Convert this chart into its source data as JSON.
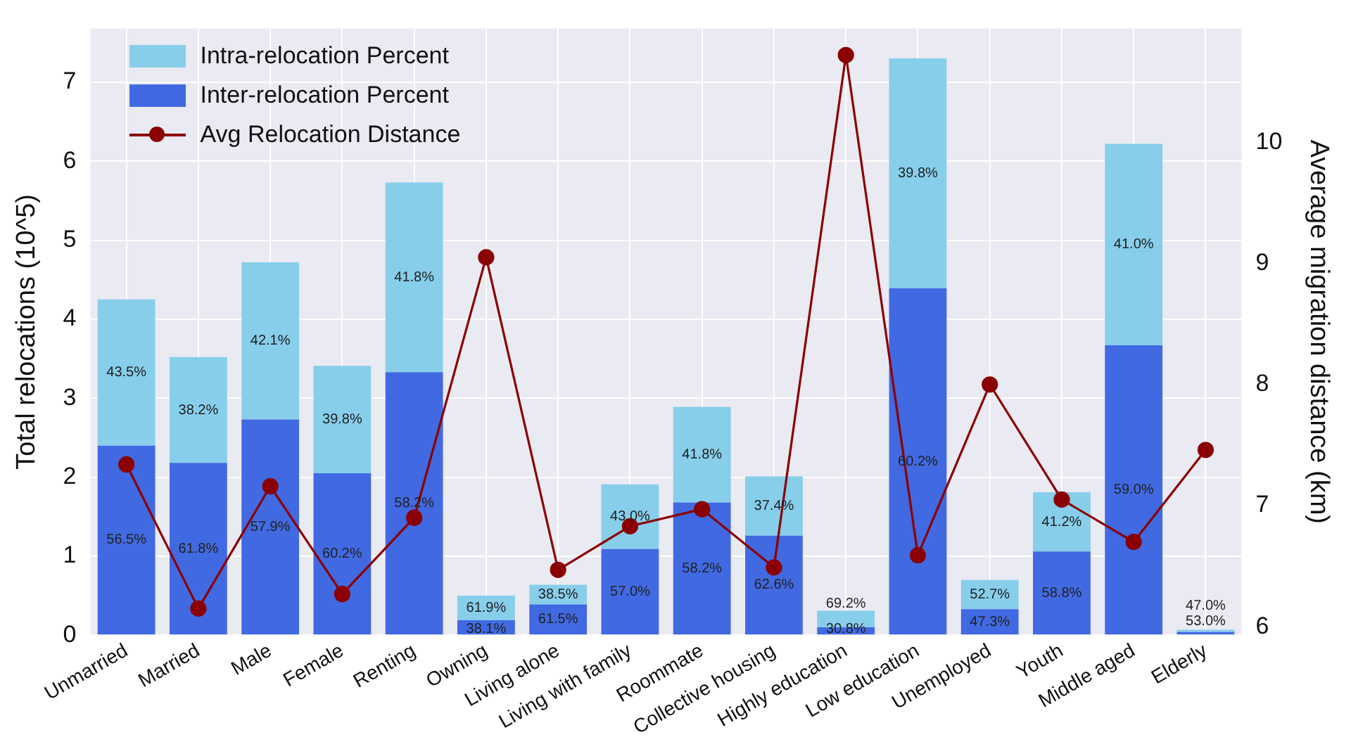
{
  "chart_data": {
    "type": "bar",
    "stacked": true,
    "ylabel": "Total relocations (10^5)",
    "y2label": "Average migration distance (km)",
    "categories": [
      "Unmarried",
      "Married",
      "Male",
      "Female",
      "Renting",
      "Owning",
      "Living alone",
      "Living with family",
      "Roommate",
      "Collective housing",
      "Highly education",
      "Low education",
      "Unemployed",
      "Youth",
      "Middle aged",
      "Elderly"
    ],
    "series": [
      {
        "name": "Inter-relocation Percent",
        "color": "#4169e1",
        "values": [
          2.4,
          2.18,
          2.73,
          2.05,
          3.33,
          0.19,
          0.39,
          1.09,
          1.68,
          1.26,
          0.1,
          4.39,
          0.33,
          1.06,
          3.67,
          0.04
        ]
      },
      {
        "name": "Intra-relocation Percent",
        "color": "#87ceeb",
        "values": [
          1.85,
          1.34,
          1.99,
          1.36,
          2.4,
          0.31,
          0.25,
          0.82,
          1.21,
          0.75,
          0.21,
          2.91,
          0.37,
          0.75,
          2.55,
          0.03
        ]
      },
      {
        "name": "Avg Relocation Distance",
        "type": "line",
        "axis": "y2",
        "color": "#8b0000",
        "marker": "circle",
        "values": [
          7.34,
          6.15,
          7.16,
          6.27,
          6.9,
          9.05,
          6.47,
          6.83,
          6.97,
          6.49,
          10.72,
          6.59,
          8.0,
          7.05,
          6.7,
          7.46
        ]
      }
    ],
    "annotations": [
      "56.5%",
      "43.5%",
      "61.8%",
      "38.2%",
      "57.9%",
      "42.1%",
      "60.2%",
      "39.8%",
      "58.2%",
      "41.8%",
      "38.1%",
      "61.9%",
      "61.5%",
      "38.5%",
      "57.0%",
      "43.0%",
      "58.2%",
      "41.8%",
      "62.6%",
      "37.4%",
      "30.8%",
      "69.2%",
      "60.2%",
      "39.8%",
      "47.3%",
      "52.7%",
      "58.8%",
      "41.2%",
      "59.0%",
      "41.0%",
      "53.0%",
      "47.0%"
    ],
    "ylim": [
      0,
      7.68
    ],
    "yticks": [
      0,
      1,
      2,
      3,
      4,
      5,
      6,
      7
    ],
    "y2lim": [
      5.93,
      10.94
    ],
    "y2ticks": [
      6,
      7,
      8,
      9,
      10
    ],
    "grid": true,
    "legend": "top left"
  }
}
